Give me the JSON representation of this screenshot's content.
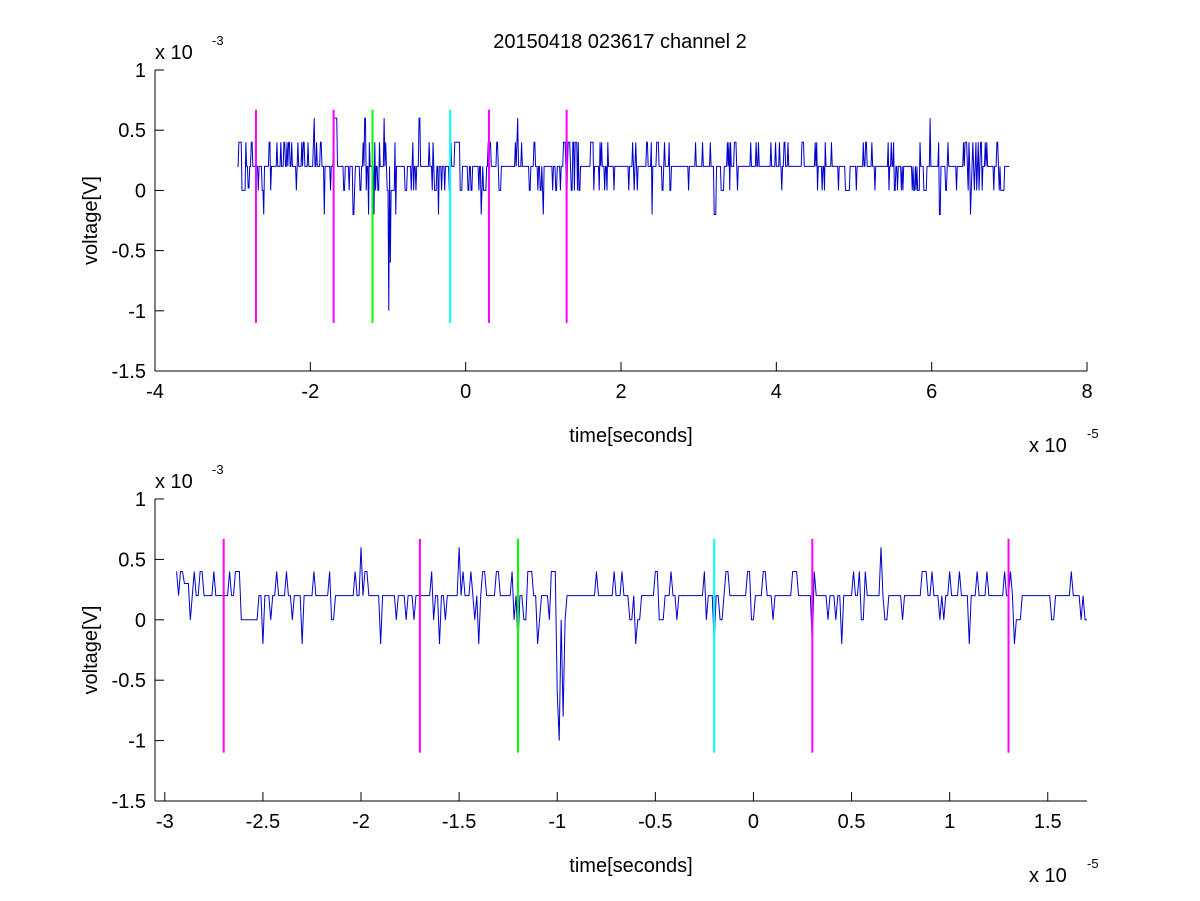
{
  "figure": {
    "title": "20150418 023617 channel 2"
  },
  "chart_data": [
    {
      "type": "line",
      "xlabel": "time[seconds]",
      "ylabel": "voltage[V]",
      "x_exponent_label": "x 10",
      "x_exponent": "-5",
      "y_exponent_label": "x 10",
      "y_exponent": "-3",
      "xlim": [
        -4,
        8
      ],
      "ylim": [
        -1.5,
        1
      ],
      "x_ticks": [
        -4,
        -2,
        0,
        2,
        4,
        6,
        8
      ],
      "x_tick_labels": [
        "-4",
        "-2",
        "0",
        "2",
        "4",
        "6",
        "8"
      ],
      "y_ticks": [
        -1.5,
        -1,
        -0.5,
        0,
        0.5,
        1
      ],
      "y_tick_labels": [
        "-1.5",
        "-1",
        "-0.5",
        "0",
        "0.5",
        "1"
      ],
      "series": [
        {
          "color": "#0000cc",
          "generator": "noise",
          "x_start": -2.94,
          "x_end": 7.0,
          "step": 0.01,
          "levels": [
            0,
            0.2,
            0.4
          ],
          "spikes": [
            {
              "x": -2.92,
              "y": 0.4
            },
            {
              "x": -2.9,
              "y": 0.4
            },
            {
              "x": -2.8,
              "y": 0.02
            },
            {
              "x": -2.6,
              "y": -0.2
            },
            {
              "x": -1.95,
              "y": 0.6
            },
            {
              "x": -1.82,
              "y": -0.2
            },
            {
              "x": -1.7,
              "y": 0.6
            },
            {
              "x": -1.45,
              "y": -0.2
            },
            {
              "x": -1.3,
              "y": 0.6
            },
            {
              "x": -1.25,
              "y": -0.2
            },
            {
              "x": -1.18,
              "y": -0.2
            },
            {
              "x": -1.05,
              "y": 0.6
            },
            {
              "x": -0.99,
              "y": -1.0
            },
            {
              "x": -0.97,
              "y": -0.6
            },
            {
              "x": -0.9,
              "y": -0.2
            },
            {
              "x": -0.6,
              "y": 0.6
            },
            {
              "x": -0.35,
              "y": -0.2
            },
            {
              "x": -0.12,
              "y": 0.4
            },
            {
              "x": 0.2,
              "y": -0.2
            },
            {
              "x": 0.67,
              "y": 0.6
            },
            {
              "x": 1.0,
              "y": -0.2
            },
            {
              "x": 1.3,
              "y": -0.2
            },
            {
              "x": 1.45,
              "y": 0.4
            },
            {
              "x": 2.4,
              "y": -0.2
            },
            {
              "x": 3.2,
              "y": -0.2
            },
            {
              "x": 5.85,
              "y": 0.4
            },
            {
              "x": 5.98,
              "y": 0.6
            },
            {
              "x": 6.1,
              "y": -0.2
            },
            {
              "x": 6.5,
              "y": -0.2
            }
          ]
        }
      ],
      "markers": [
        {
          "x": -2.7,
          "color": "#ff00ff",
          "y_from": -1.1,
          "y_to": 0.67
        },
        {
          "x": -1.7,
          "color": "#ff00ff",
          "y_from": -1.1,
          "y_to": 0.67
        },
        {
          "x": -1.2,
          "color": "#00ff00",
          "y_from": -1.1,
          "y_to": 0.67
        },
        {
          "x": -0.2,
          "color": "#00ffff",
          "y_from": -1.1,
          "y_to": 0.67
        },
        {
          "x": 0.3,
          "color": "#ff00ff",
          "y_from": -1.1,
          "y_to": 0.67
        },
        {
          "x": 1.3,
          "color": "#ff00ff",
          "y_from": -1.1,
          "y_to": 0.67
        }
      ]
    },
    {
      "type": "line",
      "xlabel": "time[seconds]",
      "ylabel": "voltage[V]",
      "x_exponent_label": "x 10",
      "x_exponent": "-5",
      "y_exponent_label": "x 10",
      "y_exponent": "-3",
      "xlim": [
        -3.05,
        1.7
      ],
      "ylim": [
        -1.5,
        1
      ],
      "x_ticks": [
        -3,
        -2.5,
        -2,
        -1.5,
        -1,
        -0.5,
        0,
        0.5,
        1,
        1.5
      ],
      "x_tick_labels": [
        "-3",
        "-2.5",
        "-2",
        "-1.5",
        "-1",
        "-0.5",
        "0",
        "0.5",
        "1",
        "1.5"
      ],
      "y_ticks": [
        -1.5,
        -1,
        -0.5,
        0,
        0.5,
        1
      ],
      "y_tick_labels": [
        "-1.5",
        "-1",
        "-0.5",
        "0",
        "0.5",
        "1"
      ],
      "series": [
        {
          "color": "#0000cc",
          "generator": "noise",
          "x_start": -2.94,
          "x_end": 1.7,
          "step": 0.01,
          "levels": [
            0,
            0.2,
            0.4
          ],
          "spikes": [
            {
              "x": -2.94,
              "y": 0.4
            },
            {
              "x": -2.92,
              "y": 0.4
            },
            {
              "x": -2.9,
              "y": 0.3
            },
            {
              "x": -2.5,
              "y": -0.2
            },
            {
              "x": -2.3,
              "y": -0.2
            },
            {
              "x": -2.0,
              "y": 0.6
            },
            {
              "x": -1.9,
              "y": -0.2
            },
            {
              "x": -1.6,
              "y": -0.2
            },
            {
              "x": -1.5,
              "y": 0.6
            },
            {
              "x": -1.4,
              "y": -0.2
            },
            {
              "x": -1.2,
              "y": -0.2
            },
            {
              "x": -1.1,
              "y": -0.2
            },
            {
              "x": -1.0,
              "y": -0.6
            },
            {
              "x": -0.99,
              "y": -1.0
            },
            {
              "x": -0.97,
              "y": -0.8
            },
            {
              "x": -0.6,
              "y": -0.2
            },
            {
              "x": -0.5,
              "y": 0.4
            },
            {
              "x": -0.25,
              "y": 0.4
            },
            {
              "x": -0.2,
              "y": -0.2
            },
            {
              "x": 0.05,
              "y": 0.4
            },
            {
              "x": 0.3,
              "y": -0.2
            },
            {
              "x": 0.45,
              "y": -0.2
            },
            {
              "x": 0.65,
              "y": 0.6
            },
            {
              "x": 1.0,
              "y": 0.4
            },
            {
              "x": 1.1,
              "y": -0.2
            },
            {
              "x": 1.33,
              "y": -0.2
            },
            {
              "x": 1.62,
              "y": 0.4
            }
          ]
        }
      ],
      "markers": [
        {
          "x": -2.7,
          "color": "#ff00ff",
          "y_from": -1.1,
          "y_to": 0.67
        },
        {
          "x": -1.7,
          "color": "#ff00ff",
          "y_from": -1.1,
          "y_to": 0.67
        },
        {
          "x": -1.2,
          "color": "#00ff00",
          "y_from": -1.1,
          "y_to": 0.67
        },
        {
          "x": -0.2,
          "color": "#00ffff",
          "y_from": -1.1,
          "y_to": 0.67
        },
        {
          "x": 0.3,
          "color": "#ff00ff",
          "y_from": -1.1,
          "y_to": 0.67
        },
        {
          "x": 1.3,
          "color": "#ff00ff",
          "y_from": -1.1,
          "y_to": 0.67
        }
      ]
    }
  ]
}
